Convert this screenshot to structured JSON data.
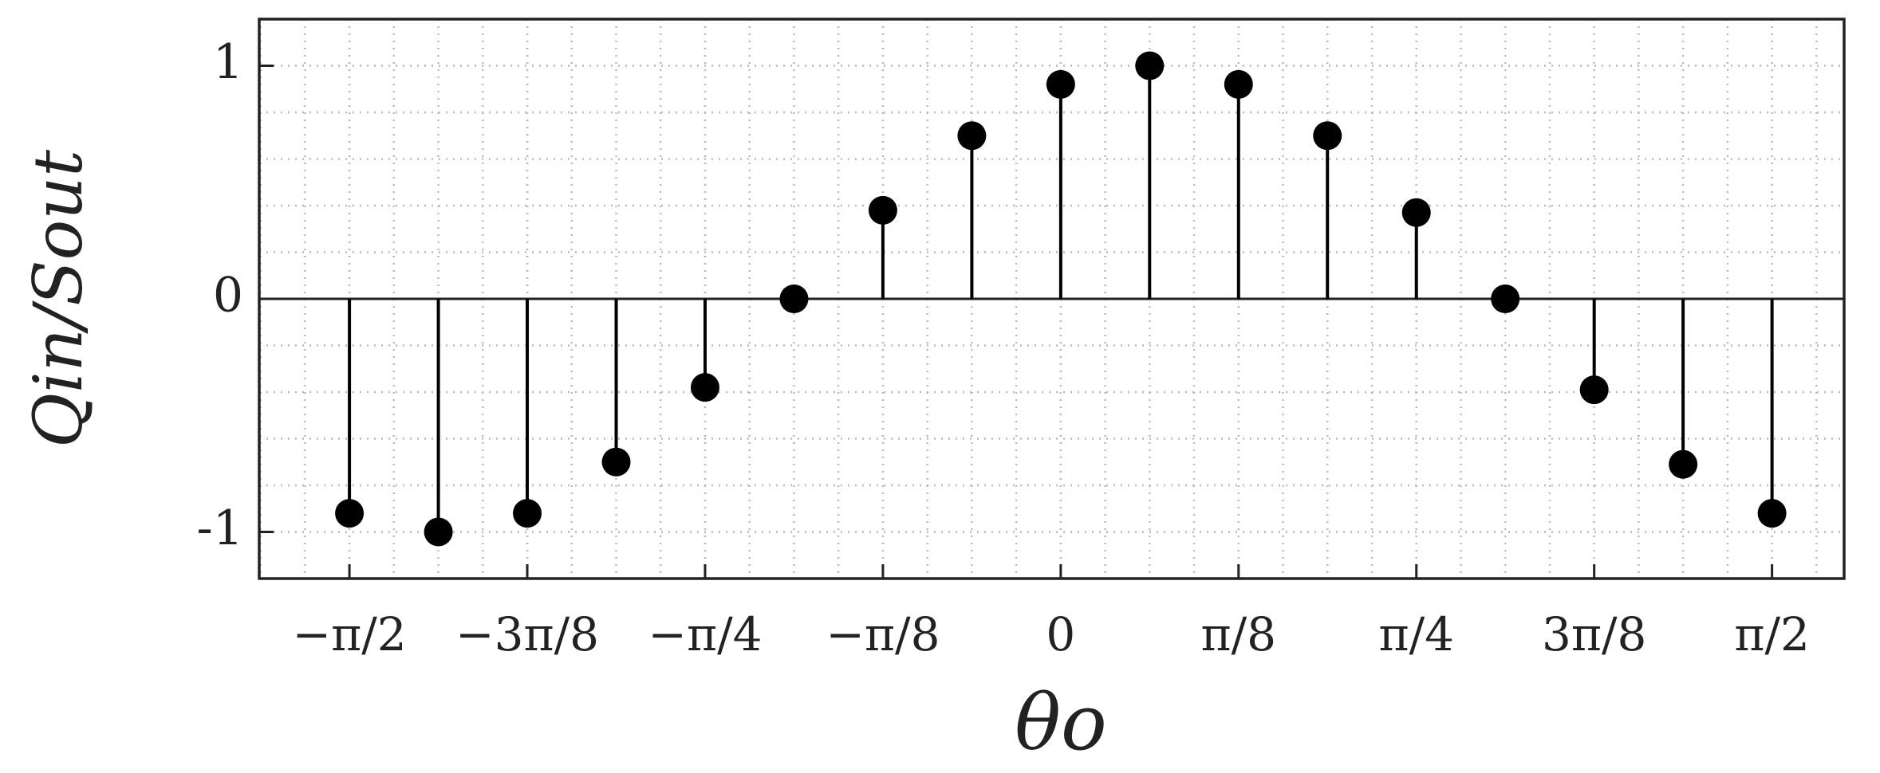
{
  "chart_data": {
    "type": "stem",
    "xlabel": "θo",
    "ylabel": "Qin/Sout",
    "x": [
      -1.5708,
      -1.3744,
      -1.1781,
      -0.9817,
      -0.7854,
      -0.589,
      -0.3927,
      -0.1963,
      0,
      0.1963,
      0.3927,
      0.589,
      0.7854,
      0.9817,
      1.1781,
      1.3744,
      1.5708
    ],
    "values": [
      -0.92,
      -1,
      -0.92,
      -0.7,
      -0.38,
      0,
      0.38,
      0.7,
      0.92,
      1,
      0.92,
      0.7,
      0.37,
      0,
      -0.39,
      -0.71,
      -0.92
    ],
    "color": "#000000",
    "xlim": [
      -1.77,
      1.73
    ],
    "ylim": [
      -1.2,
      1.2
    ],
    "xticks": [
      {
        "value": -1.5708,
        "label": "−π/2"
      },
      {
        "value": -1.1781,
        "label": "−3π/8"
      },
      {
        "value": -0.7854,
        "label": "−π/4"
      },
      {
        "value": -0.3927,
        "label": "−π/8"
      },
      0,
      {
        "value": 0.3927,
        "label": "π/8"
      },
      {
        "value": 0.7854,
        "label": "π/4"
      },
      {
        "value": 1.1781,
        "label": "3π/8"
      },
      {
        "value": 1.5708,
        "label": "π/2"
      }
    ],
    "yticks": [
      -1,
      0,
      1
    ],
    "grid": true,
    "minor_grid": true
  }
}
